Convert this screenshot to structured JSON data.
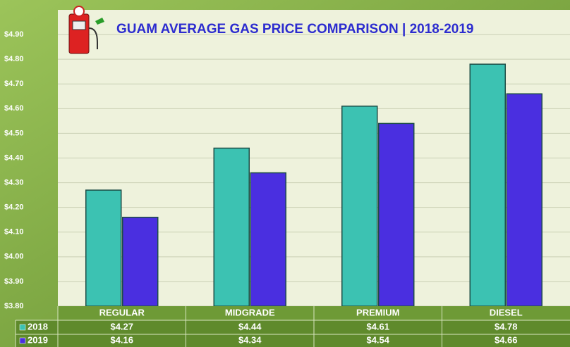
{
  "chart_data": {
    "type": "bar",
    "title": "GUAM AVERAGE GAS PRICE COMPARISON | 2018-2019",
    "categories": [
      "REGULAR",
      "MIDGRADE",
      "PREMIUM",
      "DIESEL"
    ],
    "series": [
      {
        "name": "2018",
        "color": "#3cc2b2",
        "values": [
          4.27,
          4.44,
          4.61,
          4.78
        ],
        "value_labels": [
          "$4.27",
          "$4.44",
          "$4.61",
          "$4.78"
        ]
      },
      {
        "name": "2019",
        "color": "#4a2fe0",
        "values": [
          4.16,
          4.34,
          4.54,
          4.66
        ],
        "value_labels": [
          "$4.16",
          "$4.34",
          "$4.54",
          "$4.66"
        ]
      }
    ],
    "ylim": [
      3.8,
      5.0
    ],
    "yticks": [
      {
        "value": 3.8,
        "label": "$3.80"
      },
      {
        "value": 3.9,
        "label": "$3.90"
      },
      {
        "value": 4.0,
        "label": "$4.00"
      },
      {
        "value": 4.1,
        "label": "$4.10"
      },
      {
        "value": 4.2,
        "label": "$4.20"
      },
      {
        "value": 4.3,
        "label": "$4.30"
      },
      {
        "value": 4.4,
        "label": "$4.40"
      },
      {
        "value": 4.5,
        "label": "$4.50"
      },
      {
        "value": 4.6,
        "label": "$4.60"
      },
      {
        "value": 4.7,
        "label": "$4.70"
      },
      {
        "value": 4.8,
        "label": "$4.80"
      },
      {
        "value": 4.9,
        "label": "$4.90"
      }
    ],
    "grid": true
  }
}
